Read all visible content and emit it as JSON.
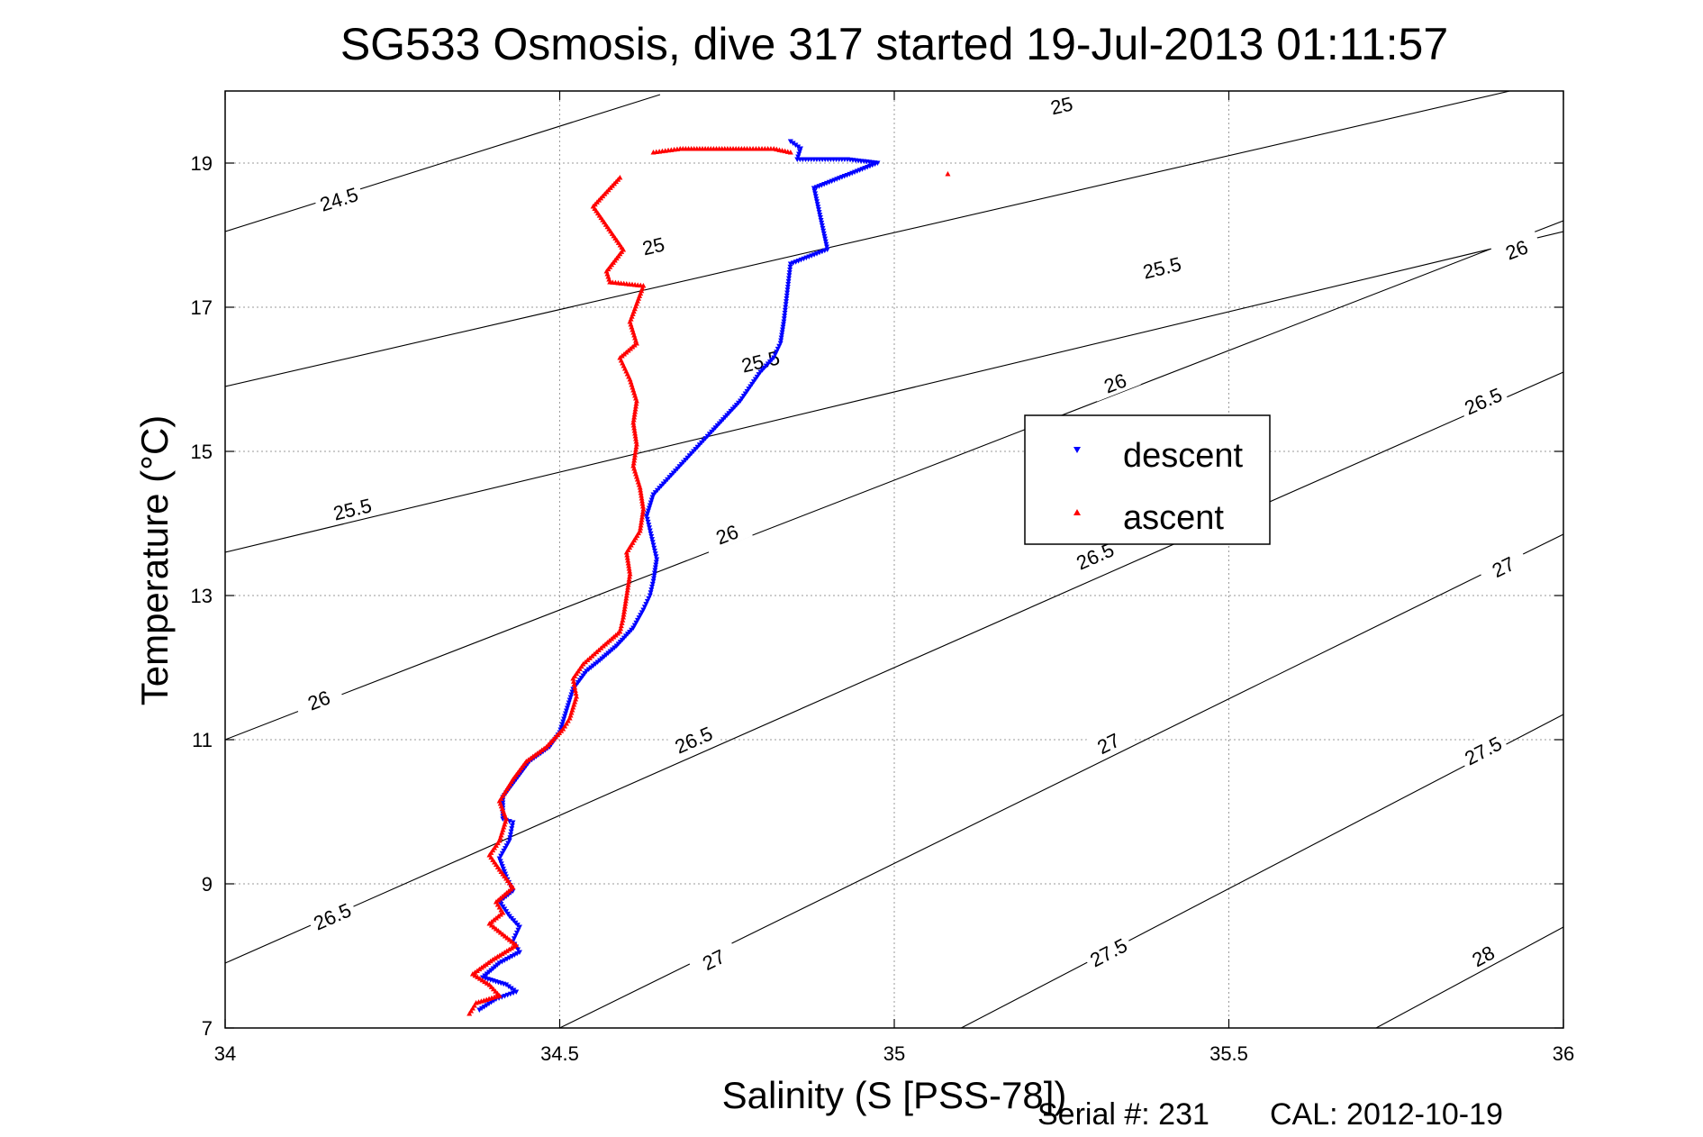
{
  "chart_data": {
    "type": "scatter",
    "title": "SG533 Osmosis, dive 317 started 19-Jul-2013 01:11:57",
    "xlabel": "Salinity (S [PSS-78])",
    "ylabel": "Temperature (°C)",
    "xlim": [
      34,
      36
    ],
    "ylim": [
      7,
      20
    ],
    "xticks": [
      34,
      34.5,
      35,
      35.5,
      36
    ],
    "xtick_labels": [
      "34",
      "34.5",
      "35",
      "35.5",
      "36"
    ],
    "yticks": [
      7,
      9,
      11,
      13,
      15,
      17,
      19
    ],
    "ytick_labels": [
      "7",
      "9",
      "11",
      "13",
      "15",
      "17",
      "19"
    ],
    "grid": true,
    "legend_position": "center-right",
    "series": [
      {
        "name": "descent",
        "color": "#0000ff",
        "marker": "triangle-down",
        "points": [
          [
            34.845,
            19.3
          ],
          [
            34.86,
            19.2
          ],
          [
            34.855,
            19.05
          ],
          [
            34.93,
            19.05
          ],
          [
            34.975,
            19.0
          ],
          [
            34.88,
            18.65
          ],
          [
            34.9,
            17.8
          ],
          [
            34.845,
            17.6
          ],
          [
            34.84,
            17.2
          ],
          [
            34.835,
            16.8
          ],
          [
            34.83,
            16.5
          ],
          [
            34.82,
            16.3
          ],
          [
            34.8,
            16.1
          ],
          [
            34.785,
            15.9
          ],
          [
            34.77,
            15.7
          ],
          [
            34.75,
            15.5
          ],
          [
            34.73,
            15.3
          ],
          [
            34.7,
            15.0
          ],
          [
            34.67,
            14.7
          ],
          [
            34.64,
            14.4
          ],
          [
            34.63,
            14.1
          ],
          [
            34.635,
            13.9
          ],
          [
            34.645,
            13.5
          ],
          [
            34.64,
            13.2
          ],
          [
            34.635,
            13.0
          ],
          [
            34.625,
            12.8
          ],
          [
            34.61,
            12.55
          ],
          [
            34.585,
            12.3
          ],
          [
            34.56,
            12.1
          ],
          [
            34.54,
            11.95
          ],
          [
            34.52,
            11.7
          ],
          [
            34.51,
            11.4
          ],
          [
            34.5,
            11.1
          ],
          [
            34.485,
            10.9
          ],
          [
            34.455,
            10.7
          ],
          [
            34.435,
            10.45
          ],
          [
            34.415,
            10.2
          ],
          [
            34.415,
            9.9
          ],
          [
            34.43,
            9.85
          ],
          [
            34.425,
            9.6
          ],
          [
            34.41,
            9.35
          ],
          [
            34.42,
            9.1
          ],
          [
            34.43,
            8.9
          ],
          [
            34.41,
            8.75
          ],
          [
            34.425,
            8.55
          ],
          [
            34.44,
            8.4
          ],
          [
            34.43,
            8.2
          ],
          [
            34.44,
            8.05
          ],
          [
            34.41,
            7.9
          ],
          [
            34.385,
            7.7
          ],
          [
            34.42,
            7.6
          ],
          [
            34.435,
            7.5
          ],
          [
            34.405,
            7.4
          ],
          [
            34.38,
            7.25
          ]
        ]
      },
      {
        "name": "ascent",
        "color": "#ff0000",
        "marker": "triangle-up",
        "points": [
          [
            34.64,
            19.15
          ],
          [
            34.68,
            19.2
          ],
          [
            34.73,
            19.2
          ],
          [
            34.78,
            19.2
          ],
          [
            34.82,
            19.2
          ],
          [
            34.845,
            19.15
          ],
          [
            35.08,
            18.85
          ],
          [
            34.59,
            18.8
          ],
          [
            34.55,
            18.4
          ],
          [
            34.595,
            17.8
          ],
          [
            34.57,
            17.5
          ],
          [
            34.575,
            17.35
          ],
          [
            34.625,
            17.3
          ],
          [
            34.605,
            16.8
          ],
          [
            34.615,
            16.5
          ],
          [
            34.59,
            16.3
          ],
          [
            34.605,
            16.0
          ],
          [
            34.615,
            15.7
          ],
          [
            34.61,
            15.4
          ],
          [
            34.615,
            15.1
          ],
          [
            34.61,
            14.8
          ],
          [
            34.62,
            14.5
          ],
          [
            34.625,
            14.2
          ],
          [
            34.62,
            13.9
          ],
          [
            34.6,
            13.6
          ],
          [
            34.605,
            13.3
          ],
          [
            34.6,
            13.0
          ],
          [
            34.595,
            12.7
          ],
          [
            34.59,
            12.5
          ],
          [
            34.565,
            12.3
          ],
          [
            34.535,
            12.05
          ],
          [
            34.52,
            11.85
          ],
          [
            34.525,
            11.6
          ],
          [
            34.515,
            11.3
          ],
          [
            34.505,
            11.15
          ],
          [
            34.48,
            10.9
          ],
          [
            34.45,
            10.7
          ],
          [
            34.43,
            10.45
          ],
          [
            34.41,
            10.15
          ],
          [
            34.42,
            9.9
          ],
          [
            34.41,
            9.6
          ],
          [
            34.395,
            9.4
          ],
          [
            34.41,
            9.2
          ],
          [
            34.43,
            8.95
          ],
          [
            34.405,
            8.75
          ],
          [
            34.415,
            8.6
          ],
          [
            34.395,
            8.45
          ],
          [
            34.415,
            8.3
          ],
          [
            34.435,
            8.15
          ],
          [
            34.4,
            7.95
          ],
          [
            34.37,
            7.75
          ],
          [
            34.395,
            7.6
          ],
          [
            34.41,
            7.45
          ],
          [
            34.375,
            7.35
          ],
          [
            34.365,
            7.2
          ]
        ]
      }
    ],
    "density_contours": [
      {
        "label": "24.5",
        "start": [
          34,
          18.05
        ],
        "end": [
          34.65,
          19.95
        ],
        "label_at": [
          34.17,
          18.5
        ]
      },
      {
        "label": "25",
        "start": [
          34,
          15.9
        ],
        "end": [
          35.92,
          20.0
        ],
        "label_at": [
          34.64,
          17.85
        ],
        "label2_at": [
          35.25,
          19.8
        ]
      },
      {
        "label": "25.5",
        "start": [
          34,
          13.6
        ],
        "end": [
          36.0,
          18.05
        ],
        "label_at": [
          34.19,
          14.2
        ],
        "label2_at": [
          34.8,
          16.25
        ],
        "label3_at": [
          35.4,
          17.55
        ]
      },
      {
        "label": "26",
        "start": [
          34,
          11.0
        ],
        "end": [
          36.0,
          18.2
        ],
        "label_at": [
          34.14,
          11.55
        ],
        "label2_at": [
          34.75,
          13.85
        ],
        "label3_at": [
          35.33,
          15.95
        ],
        "label4_at": [
          35.93,
          17.8
        ]
      },
      {
        "label": "26.5",
        "start": [
          34,
          7.9
        ],
        "end": [
          36.0,
          16.1
        ],
        "label_at": [
          34.16,
          8.55
        ],
        "label2_at": [
          34.7,
          11.0
        ],
        "label3_at": [
          35.3,
          13.55
        ],
        "label4_at": [
          35.88,
          15.7
        ]
      },
      {
        "label": "27",
        "start": [
          34.5,
          7.0
        ],
        "end": [
          36.0,
          13.85
        ],
        "label_at": [
          34.73,
          7.95
        ],
        "label2_at": [
          35.32,
          10.95
        ],
        "label3_at": [
          35.91,
          13.4
        ]
      },
      {
        "label": "27.5",
        "start": [
          35.1,
          7.0
        ],
        "end": [
          36.0,
          11.35
        ],
        "label_at": [
          35.32,
          8.05
        ],
        "label2_at": [
          35.88,
          10.85
        ]
      },
      {
        "label": "28",
        "start": [
          35.72,
          7.0
        ],
        "end": [
          36.0,
          8.4
        ],
        "label_at": [
          35.88,
          8.0
        ]
      }
    ]
  },
  "legend": {
    "descent_label": "descent",
    "ascent_label": "ascent"
  },
  "footer": {
    "serial": "Serial #: 231",
    "cal": "CAL: 2012-10-19"
  }
}
